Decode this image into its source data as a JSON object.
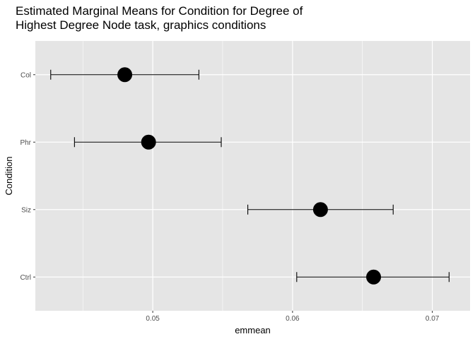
{
  "chart_data": {
    "type": "scatter",
    "subtype": "point-errorbar",
    "title_lines": [
      "Estimated Marginal Means for Condition for Degree of",
      "Highest Degree Node task, graphics conditions"
    ],
    "xlabel": "emmean",
    "ylabel": "Condition",
    "categories": [
      "Col",
      "Phr",
      "Siz",
      "Ctrl"
    ],
    "points": [
      {
        "category": "Col",
        "emmean": 0.048,
        "lower": 0.0427,
        "upper": 0.0533
      },
      {
        "category": "Phr",
        "emmean": 0.0497,
        "lower": 0.0444,
        "upper": 0.0549
      },
      {
        "category": "Siz",
        "emmean": 0.062,
        "lower": 0.0568,
        "upper": 0.0672
      },
      {
        "category": "Ctrl",
        "emmean": 0.0658,
        "lower": 0.0603,
        "upper": 0.0712
      }
    ],
    "xlim": [
      0.0416,
      0.0727
    ],
    "xticks": [
      0.05,
      0.06,
      0.07
    ],
    "xtick_labels": [
      "0.05",
      "0.06",
      "0.07"
    ],
    "grid": true,
    "panel_background": "#e5e5e5",
    "grid_color": "#ffffff",
    "point_color": "#000000"
  }
}
